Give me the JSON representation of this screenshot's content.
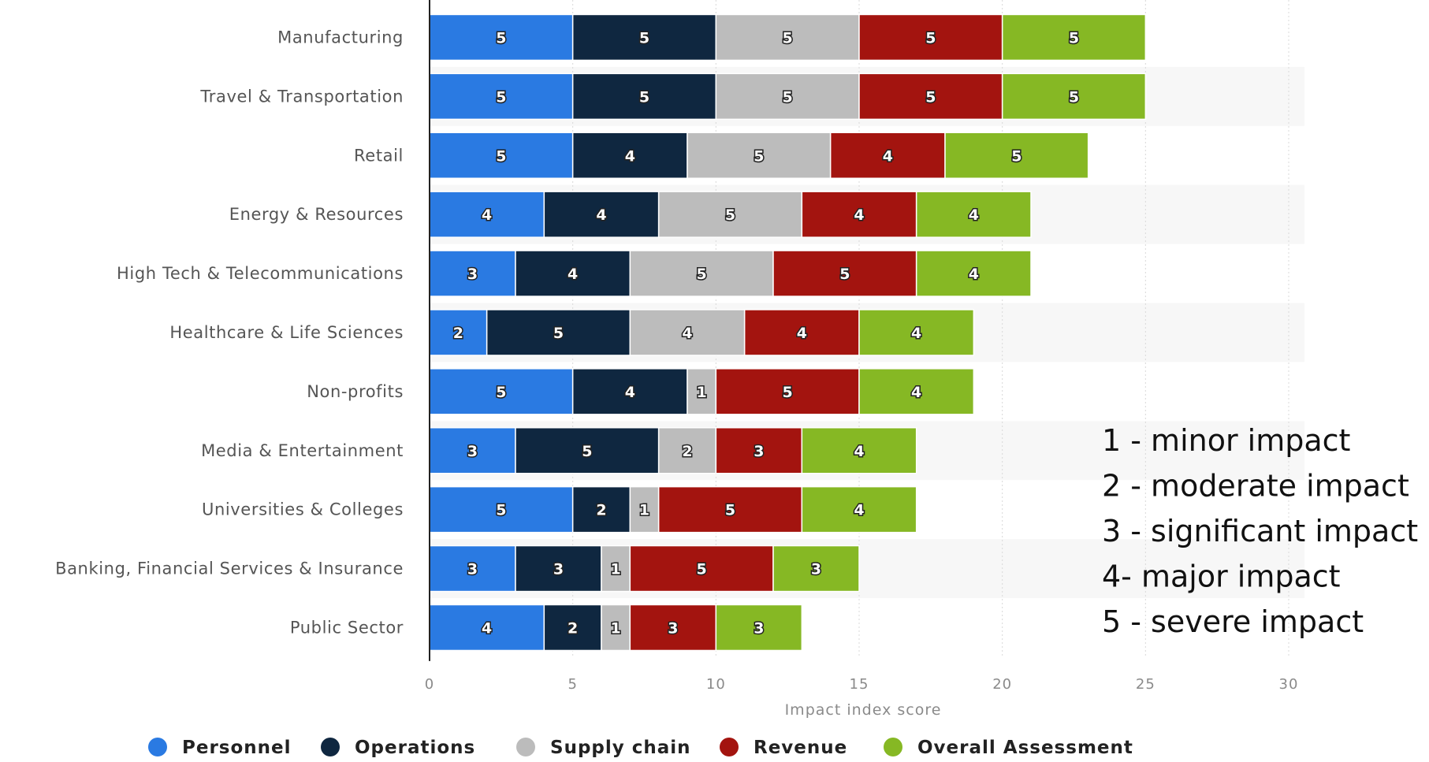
{
  "chart_data": {
    "type": "bar",
    "orientation": "horizontal",
    "stacked": true,
    "categories": [
      "Manufacturing",
      "Travel & Transportation",
      "Retail",
      "Energy & Resources",
      "High Tech & Telecommunications",
      "Healthcare & Life Sciences",
      "Non-profits",
      "Media & Entertainment",
      "Universities & Colleges",
      "Banking, Financial Services & Insurance",
      "Public Sector"
    ],
    "series": [
      {
        "name": "Personnel",
        "color": "#2a7ae2",
        "values": [
          5,
          5,
          5,
          4,
          3,
          2,
          5,
          3,
          5,
          3,
          4
        ]
      },
      {
        "name": "Operations",
        "color": "#0f2740",
        "values": [
          5,
          5,
          4,
          4,
          4,
          5,
          4,
          5,
          2,
          3,
          2
        ]
      },
      {
        "name": "Supply chain",
        "color": "#bcbcbc",
        "values": [
          5,
          5,
          5,
          5,
          5,
          4,
          1,
          2,
          1,
          1,
          1
        ]
      },
      {
        "name": "Revenue",
        "color": "#a3140f",
        "values": [
          5,
          5,
          4,
          4,
          5,
          4,
          5,
          3,
          5,
          5,
          3
        ]
      },
      {
        "name": "Overall Assessment",
        "color": "#86b824",
        "values": [
          5,
          5,
          5,
          4,
          4,
          4,
          4,
          4,
          4,
          3,
          3
        ]
      }
    ],
    "xlabel": "Impact index score",
    "xlim": [
      0,
      30
    ],
    "xticks": [
      0,
      5,
      10,
      15,
      20,
      25,
      30
    ],
    "grid": true,
    "legend_position": "bottom",
    "annotations": [
      "1 - minor impact",
      "2 - moderate impact",
      "3 - significant impact",
      "4- major impact",
      "5 - severe impact"
    ]
  }
}
